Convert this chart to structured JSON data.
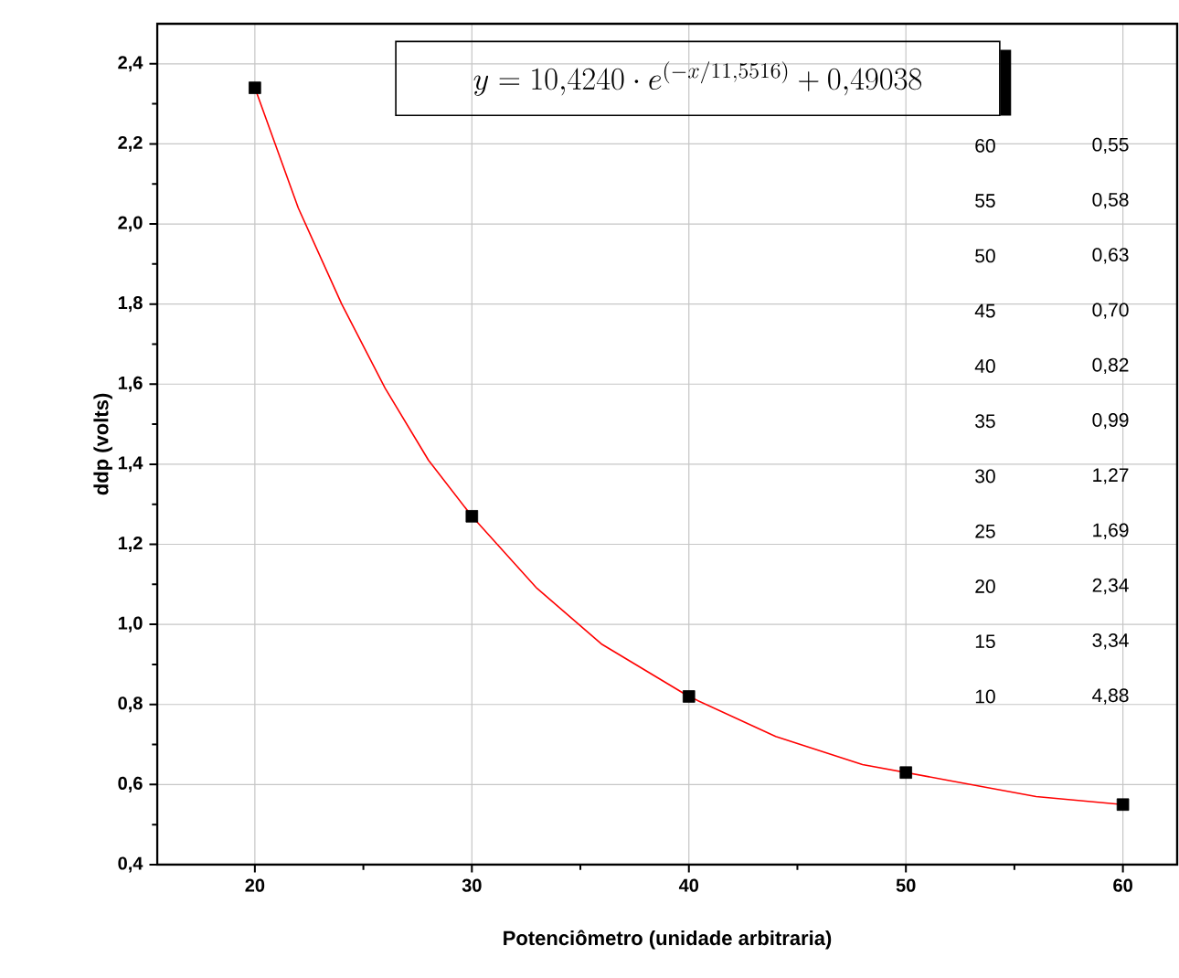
{
  "chart_data": {
    "type": "scatter",
    "xlabel": "Potenciômetro (unidade arbitraria)",
    "ylabel": "ddp (volts)",
    "xlim": [
      15.5,
      62.5
    ],
    "xticks": [
      20,
      30,
      40,
      50,
      60
    ],
    "ylim": [
      0.4,
      2.5
    ],
    "yticks": [
      {
        "value": 0.4,
        "label": "0,4"
      },
      {
        "value": 0.6,
        "label": "0,6"
      },
      {
        "value": 0.8,
        "label": "0,8"
      },
      {
        "value": 1.0,
        "label": "1,0"
      },
      {
        "value": 1.2,
        "label": "1,2"
      },
      {
        "value": 1.4,
        "label": "1,4"
      },
      {
        "value": 1.6,
        "label": "1,6"
      },
      {
        "value": 1.8,
        "label": "1,8"
      },
      {
        "value": 2.0,
        "label": "2,0"
      },
      {
        "value": 2.2,
        "label": "2,2"
      },
      {
        "value": 2.4,
        "label": "2,4"
      }
    ],
    "grid": true,
    "series": [
      {
        "color": "#000000",
        "marker": "square",
        "x": [
          20,
          30,
          40,
          50,
          60
        ],
        "values": [
          2.34,
          1.27,
          0.82,
          0.63,
          0.55
        ]
      },
      {
        "type": "line",
        "color": "#ff0000",
        "marker": "none",
        "x": [
          20,
          22,
          24,
          26,
          28,
          30,
          33,
          36,
          40,
          44,
          48,
          52,
          56,
          60
        ],
        "values": [
          2.34,
          2.04,
          1.8,
          1.59,
          1.41,
          1.27,
          1.09,
          0.95,
          0.82,
          0.72,
          0.65,
          0.61,
          0.57,
          0.55
        ]
      }
    ],
    "annotations": [
      "y = 10{,}4240 \\cdot e^{\\left(-x/11{,}5516\\right)} + 0{,}49038",
      "60",
      "0,55",
      "55",
      "0,58",
      "50",
      "0,63",
      "45",
      "0,70",
      "40",
      "0,82",
      "35",
      "0,99",
      "30",
      "1,27",
      "25",
      "1,69",
      "20",
      "2,34",
      "15",
      "3,34",
      "10",
      "4,88"
    ]
  }
}
